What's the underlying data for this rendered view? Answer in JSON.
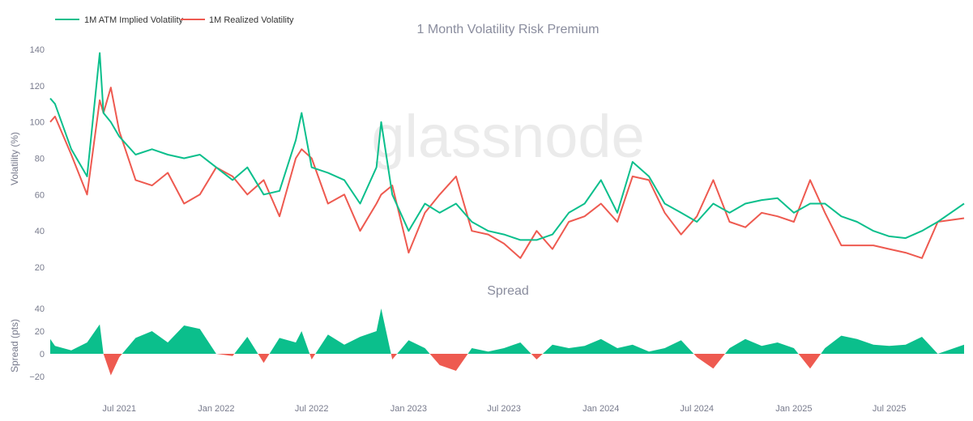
{
  "watermark": "glassnode",
  "chart_data": [
    {
      "type": "line",
      "title": "1 Month Volatility Risk Premium",
      "ylabel": "Volatility (%)",
      "xlabel": "",
      "ylim": [
        15,
        145
      ],
      "yticks": [
        20,
        40,
        60,
        80,
        100,
        120,
        140
      ],
      "grid": false,
      "legend_position": "top-left",
      "x": [
        "2021-02-20",
        "2021-03-01",
        "2021-04-01",
        "2021-05-01",
        "2021-05-25",
        "2021-06-01",
        "2021-06-15",
        "2021-07-01",
        "2021-08-01",
        "2021-09-01",
        "2021-10-01",
        "2021-11-01",
        "2021-12-01",
        "2022-01-01",
        "2022-02-01",
        "2022-03-01",
        "2022-04-01",
        "2022-05-01",
        "2022-06-01",
        "2022-06-12",
        "2022-07-01",
        "2022-08-01",
        "2022-09-01",
        "2022-10-01",
        "2022-11-01",
        "2022-11-10",
        "2022-12-01",
        "2023-01-01",
        "2023-02-01",
        "2023-03-01",
        "2023-04-01",
        "2023-05-01",
        "2023-06-01",
        "2023-07-01",
        "2023-08-01",
        "2023-09-01",
        "2023-10-01",
        "2023-11-01",
        "2023-12-01",
        "2024-01-01",
        "2024-02-01",
        "2024-03-01",
        "2024-04-01",
        "2024-05-01",
        "2024-06-01",
        "2024-07-01",
        "2024-08-01",
        "2024-09-01",
        "2024-10-01",
        "2024-11-01",
        "2024-12-01",
        "2025-01-01",
        "2025-02-01",
        "2025-03-01",
        "2025-04-01",
        "2025-05-01",
        "2025-06-01",
        "2025-07-01",
        "2025-08-01",
        "2025-09-01",
        "2025-10-01",
        "2025-11-20"
      ],
      "series": [
        {
          "name": "1M ATM Implied Volatility",
          "color": "#0bbf8c",
          "values": [
            113,
            110,
            85,
            70,
            138,
            105,
            100,
            92,
            82,
            85,
            82,
            80,
            82,
            75,
            68,
            75,
            60,
            62,
            90,
            105,
            75,
            72,
            68,
            55,
            75,
            100,
            60,
            40,
            55,
            50,
            55,
            45,
            40,
            38,
            35,
            35,
            38,
            50,
            55,
            68,
            50,
            78,
            70,
            55,
            50,
            45,
            55,
            50,
            55,
            57,
            58,
            50,
            55,
            55,
            48,
            45,
            40,
            37,
            36,
            40,
            45,
            55
          ]
        },
        {
          "name": "1M Realized Volatility",
          "color": "#ee5a50",
          "values": [
            100,
            103,
            82,
            60,
            112,
            105,
            119,
            95,
            68,
            65,
            72,
            55,
            60,
            75,
            70,
            60,
            68,
            48,
            80,
            85,
            80,
            55,
            60,
            40,
            55,
            60,
            65,
            28,
            50,
            60,
            70,
            40,
            38,
            33,
            25,
            40,
            30,
            45,
            48,
            55,
            45,
            70,
            68,
            50,
            38,
            48,
            68,
            45,
            42,
            50,
            48,
            45,
            68,
            50,
            32,
            32,
            32,
            30,
            28,
            25,
            45,
            47
          ]
        }
      ],
      "xticks": [
        "Jul 2021",
        "Jan 2022",
        "Jul 2022",
        "Jan 2023",
        "Jul 2023",
        "Jan 2024",
        "Jul 2024",
        "Jan 2025",
        "Jul 2025"
      ]
    },
    {
      "type": "area",
      "title": "Spread",
      "ylabel": "Spread (pts)",
      "ylim": [
        -35,
        45
      ],
      "yticks": [
        -20,
        0,
        20,
        40
      ],
      "positive_color": "#0bbf8c",
      "negative_color": "#ee5a50",
      "x_same_as_volatility_chart": true,
      "values": [
        13,
        7,
        3,
        10,
        26,
        0,
        -19,
        -3,
        14,
        20,
        10,
        25,
        22,
        0,
        -2,
        15,
        -8,
        14,
        10,
        20,
        -5,
        17,
        8,
        15,
        20,
        40,
        -5,
        12,
        5,
        -10,
        -15,
        5,
        2,
        5,
        10,
        -5,
        8,
        5,
        7,
        13,
        5,
        8,
        2,
        5,
        12,
        -3,
        -13,
        5,
        13,
        7,
        10,
        5,
        -13,
        5,
        16,
        13,
        8,
        7,
        8,
        15,
        0,
        8
      ]
    }
  ]
}
